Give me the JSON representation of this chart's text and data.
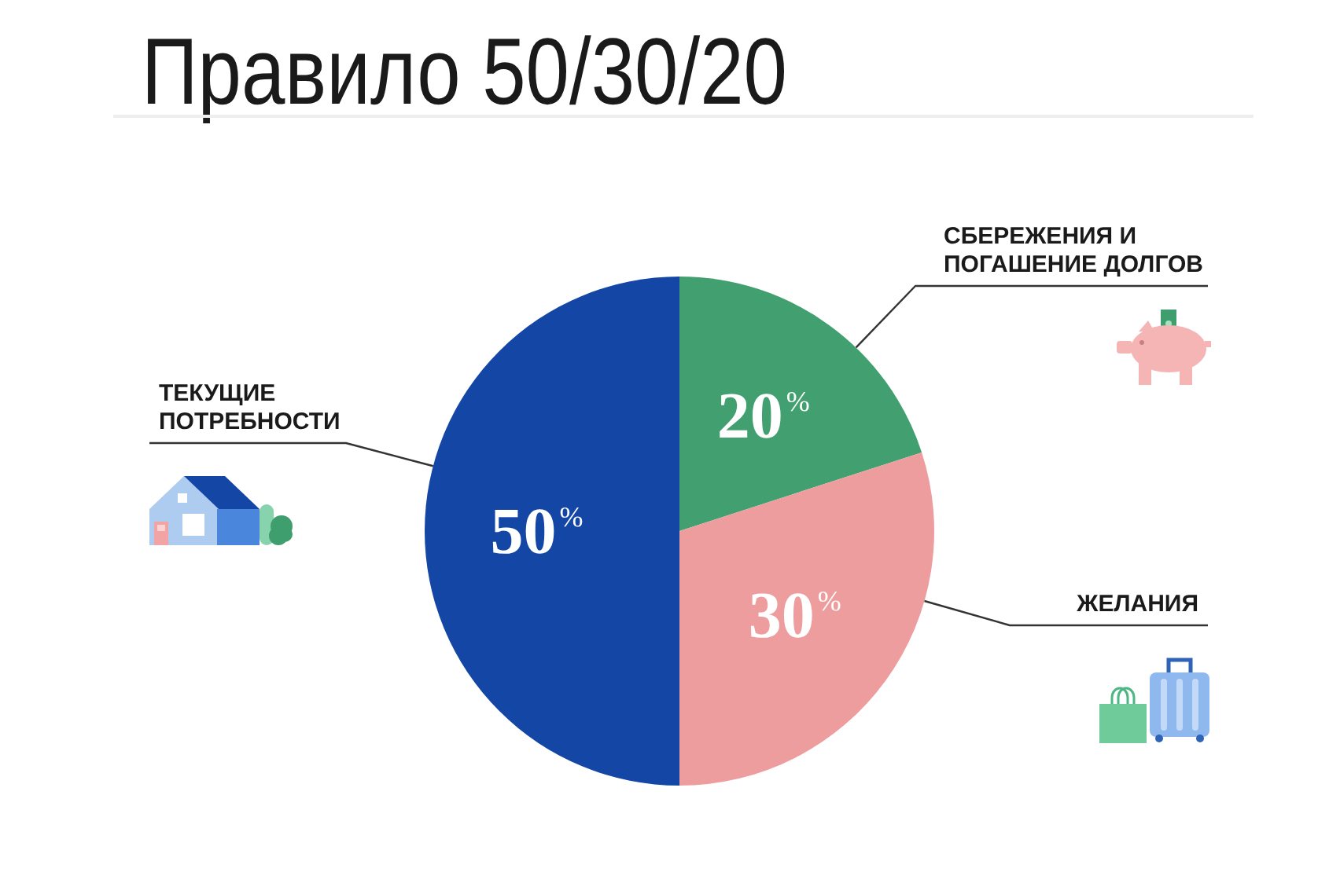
{
  "chart_data": {
    "type": "pie",
    "title": "Правило 50/30/20",
    "categories": [
      "СБЕРЕЖЕНИЯ И ПОГАШЕНИЕ ДОЛГОВ",
      "ЖЕЛАНИЯ",
      "ТЕКУЩИЕ ПОТРЕБНОСТИ"
    ],
    "values": [
      20,
      30,
      50
    ],
    "colors": [
      "#42a070",
      "#ee9d9e",
      "#1446a6"
    ],
    "value_labels": [
      "20$^{%}$",
      "30$^{%}$",
      "50$^{%}$"
    ]
  }
}
